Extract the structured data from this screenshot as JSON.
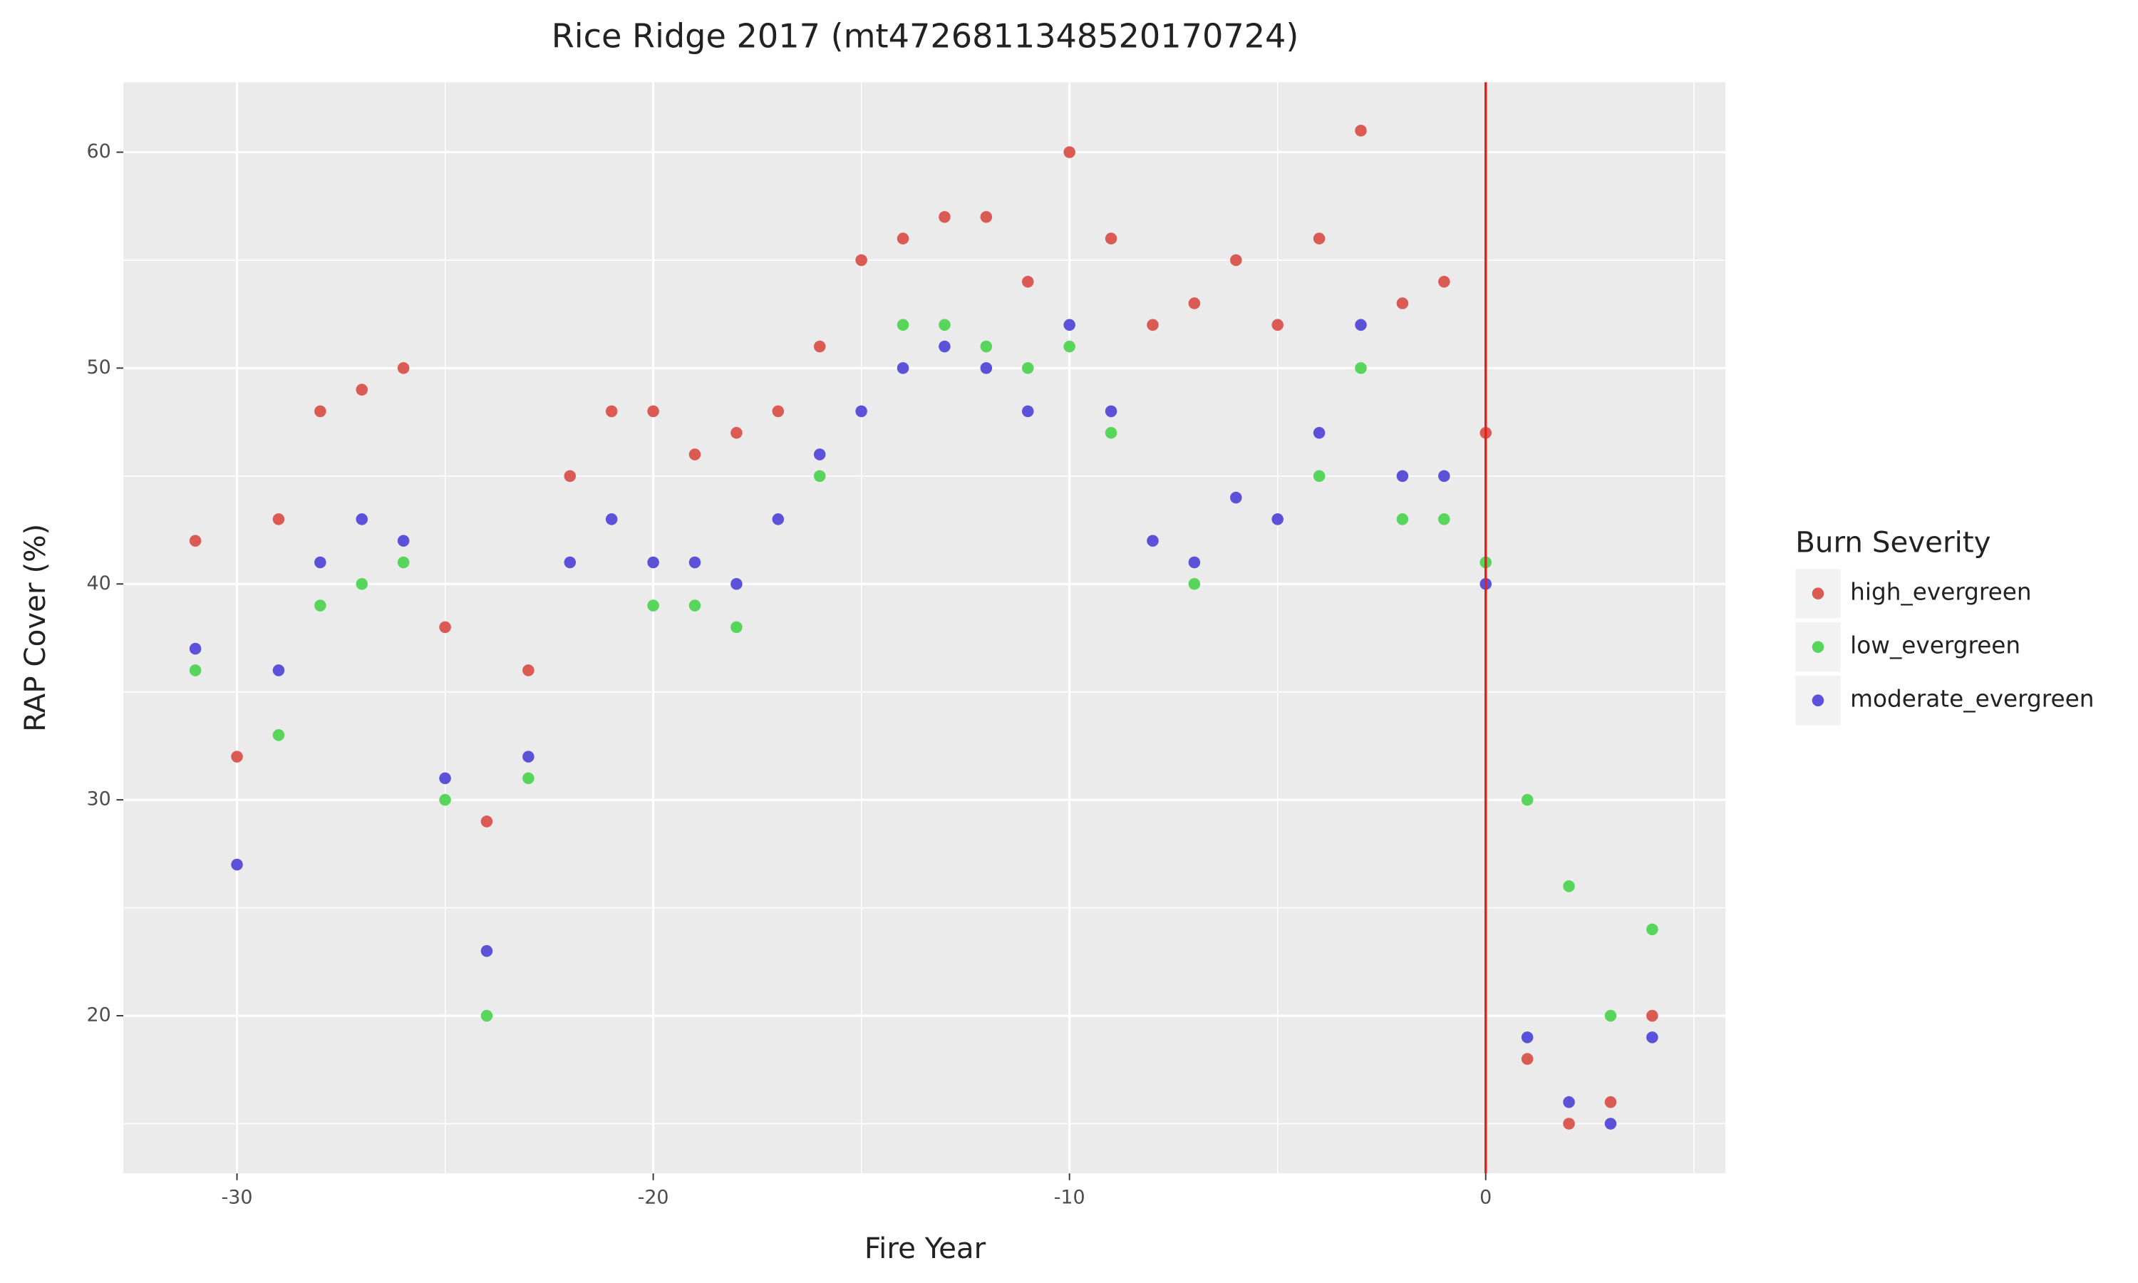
{
  "chart_data": {
    "type": "scatter",
    "title": "Rice Ridge 2017 (mt4726811348520170724)",
    "x_label": "Fire Year",
    "y_label": "RAP Cover (%)",
    "legend_title": "Burn Severity",
    "xlim": [
      -32.73,
      5.76
    ],
    "ylim": [
      12.7,
      63.24
    ],
    "xticks": [
      -30,
      -20,
      -10,
      0
    ],
    "yticks": [
      20,
      30,
      40,
      50,
      60
    ],
    "x_minor_grid": [
      -25,
      -15,
      -5,
      5
    ],
    "y_minor_grid": [
      15,
      25,
      35,
      45,
      55
    ],
    "grid": true,
    "legend_position": "right",
    "reference_line_x": 0,
    "reference_line_color": "#e8201c",
    "series": [
      {
        "name": "high_evergreen",
        "color": "#db5a54",
        "x": [
          -31,
          -30,
          -29,
          -28,
          -27,
          -26,
          -25,
          -24,
          -23,
          -22,
          -21,
          -20,
          -19,
          -18,
          -17,
          -16,
          -15,
          -14,
          -13,
          -12,
          -11,
          -10,
          -9,
          -8,
          -7,
          -6,
          -5,
          -4,
          -3,
          -2,
          -1,
          0,
          1,
          2,
          3,
          4
        ],
        "values": [
          42,
          32,
          43,
          48,
          49,
          50,
          38,
          29,
          36,
          45,
          48,
          48,
          46,
          47,
          48,
          51,
          55,
          56,
          57,
          57,
          54,
          60,
          56,
          52,
          53,
          55,
          52,
          56,
          61,
          53,
          54,
          47,
          18,
          15,
          16,
          20
        ]
      },
      {
        "name": "low_evergreen",
        "color": "#58d65c",
        "x": [
          -31,
          -29,
          -28,
          -27,
          -26,
          -25,
          -24,
          -23,
          -20,
          -19,
          -18,
          -16,
          -14,
          -13,
          -12,
          -11,
          -10,
          -9,
          -7,
          -4,
          -3,
          -2,
          -1,
          0,
          1,
          2,
          3,
          4
        ],
        "values": [
          36,
          33,
          39,
          40,
          41,
          30,
          20,
          31,
          39,
          39,
          38,
          45,
          52,
          52,
          51,
          50,
          51,
          47,
          40,
          45,
          50,
          43,
          43,
          41,
          30,
          26,
          20,
          24
        ]
      },
      {
        "name": "moderate_evergreen",
        "color": "#5c52d9",
        "x": [
          -31,
          -30,
          -29,
          -28,
          -27,
          -26,
          -25,
          -24,
          -23,
          -22,
          -21,
          -20,
          -19,
          -18,
          -17,
          -16,
          -15,
          -14,
          -13,
          -12,
          -11,
          -10,
          -9,
          -8,
          -7,
          -6,
          -5,
          -4,
          -3,
          -2,
          -1,
          0,
          1,
          2,
          3,
          4
        ],
        "values": [
          37,
          27,
          36,
          41,
          43,
          42,
          31,
          23,
          32,
          41,
          43,
          41,
          41,
          40,
          43,
          46,
          48,
          50,
          51,
          50,
          48,
          52,
          48,
          42,
          41,
          44,
          43,
          47,
          52,
          45,
          45,
          40,
          19,
          16,
          15,
          19
        ]
      }
    ]
  }
}
